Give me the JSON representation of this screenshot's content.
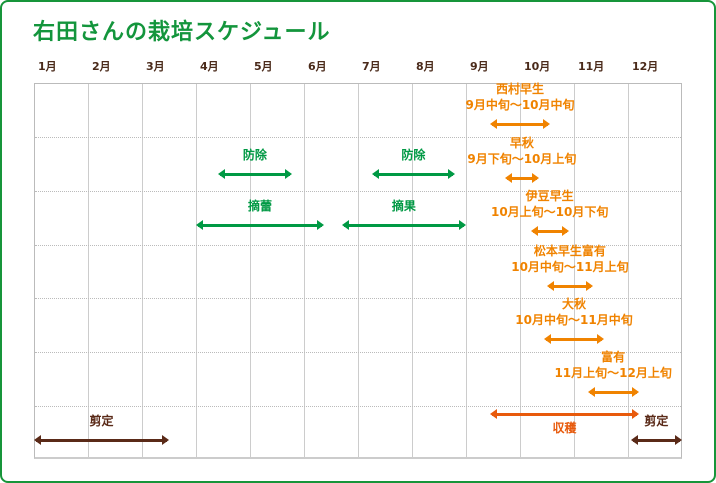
{
  "title": "右田さんの栽培スケジュール",
  "months": [
    "1月",
    "2月",
    "3月",
    "4月",
    "5月",
    "6月",
    "7月",
    "8月",
    "9月",
    "10月",
    "11月",
    "12月"
  ],
  "colors": {
    "border": "#17953a",
    "variety": "#f08300",
    "task": "#009944",
    "pruning": "#5a2a18",
    "harvest": "#e85a0c"
  },
  "chart_data": {
    "type": "timeline",
    "unit": "month",
    "items": [
      {
        "name": "西村早生",
        "period": "9月中旬〜10月中旬",
        "start": 9.45,
        "end": 10.55,
        "color": "#f08300",
        "label_pos": "above"
      },
      {
        "name": "早秋",
        "period": "9月下旬〜10月上旬",
        "start": 9.72,
        "end": 10.35,
        "color": "#f08300",
        "label_pos": "above"
      },
      {
        "name": "伊豆早生",
        "period": "10月上旬〜10月下旬",
        "start": 10.2,
        "end": 10.9,
        "color": "#f08300",
        "label_pos": "above"
      },
      {
        "name": "松本早生富有",
        "period": "10月中旬〜11月上旬",
        "start": 10.5,
        "end": 11.35,
        "color": "#f08300",
        "label_pos": "above"
      },
      {
        "name": "大秋",
        "period": "10月中旬〜11月中旬",
        "start": 10.45,
        "end": 11.55,
        "color": "#f08300",
        "label_pos": "above"
      },
      {
        "name": "富有",
        "period": "11月上旬〜12月上旬",
        "start": 11.25,
        "end": 12.2,
        "color": "#f08300",
        "label_pos": "above"
      },
      {
        "name": "防除",
        "start": 4.4,
        "end": 5.78,
        "color": "#009944",
        "label_pos": "above"
      },
      {
        "name": "防除",
        "start": 7.25,
        "end": 8.8,
        "color": "#009944",
        "label_pos": "above"
      },
      {
        "name": "摘蕾",
        "start": 4.0,
        "end": 6.37,
        "color": "#009944",
        "label_pos": "above"
      },
      {
        "name": "摘果",
        "start": 6.7,
        "end": 9.0,
        "color": "#009944",
        "label_pos": "above"
      },
      {
        "name": "収穫",
        "start": 9.45,
        "end": 12.2,
        "color": "#e85a0c",
        "label_pos": "below"
      },
      {
        "name": "剪定",
        "start": 1.0,
        "end": 3.5,
        "color": "#5a2a18",
        "label_pos": "above"
      },
      {
        "name": "剪定",
        "start": 12.05,
        "end": 13.0,
        "color": "#5a2a18",
        "label_pos": "above"
      }
    ]
  }
}
